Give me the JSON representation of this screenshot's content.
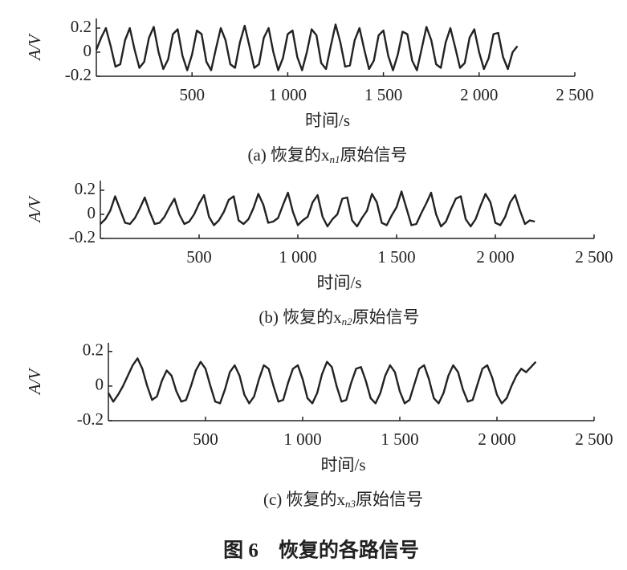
{
  "chart_data": [
    {
      "type": "line",
      "xlabel": "时间/s",
      "ylabel": "A/V",
      "caption": {
        "prefix": "(a) 恢复的",
        "var": "x",
        "sub": "n1",
        "suffix": "原始信号"
      },
      "xlim": [
        0,
        2500
      ],
      "ylim": [
        -0.2,
        0.28
      ],
      "xticks": [
        500,
        {
          "value": 1000,
          "label": "1 000"
        },
        {
          "value": 1500,
          "label": "1 500"
        },
        {
          "value": 2000,
          "label": "2 000"
        },
        {
          "value": 2500,
          "label": "2 500"
        }
      ],
      "yticks": [
        -0.2,
        0,
        0.2
      ],
      "x": [
        0,
        25,
        50,
        75,
        100,
        125,
        150,
        175,
        200,
        225,
        250,
        275,
        300,
        325,
        350,
        375,
        400,
        425,
        450,
        475,
        500,
        525,
        550,
        575,
        600,
        625,
        650,
        675,
        700,
        725,
        750,
        775,
        800,
        825,
        850,
        875,
        900,
        925,
        950,
        975,
        1000,
        1025,
        1050,
        1075,
        1100,
        1125,
        1150,
        1175,
        1200,
        1225,
        1250,
        1275,
        1300,
        1325,
        1350,
        1375,
        1400,
        1425,
        1450,
        1475,
        1500,
        1525,
        1550,
        1575,
        1600,
        1625,
        1650,
        1675,
        1700,
        1725,
        1750,
        1775,
        1800,
        1825,
        1850,
        1875,
        1900,
        1925,
        1950,
        1975,
        2000,
        2025,
        2050,
        2075,
        2100,
        2125,
        2150,
        2175,
        2200
      ],
      "series": [
        {
          "color": "#222222",
          "values": [
            0.02,
            0.12,
            0.2,
            0.05,
            -0.12,
            -0.1,
            0.1,
            0.2,
            0.02,
            -0.13,
            -0.08,
            0.12,
            0.21,
            0.0,
            -0.14,
            -0.06,
            0.15,
            0.19,
            -0.03,
            -0.15,
            -0.02,
            0.18,
            0.15,
            -0.08,
            -0.15,
            0.03,
            0.2,
            0.1,
            -0.1,
            -0.13,
            0.08,
            0.22,
            0.05,
            -0.13,
            -0.1,
            0.12,
            0.2,
            0.0,
            -0.15,
            -0.05,
            0.15,
            0.18,
            -0.04,
            -0.15,
            0.0,
            0.19,
            0.14,
            -0.09,
            -0.14,
            0.05,
            0.23,
            0.08,
            -0.12,
            -0.11,
            0.1,
            0.2,
            0.02,
            -0.14,
            -0.07,
            0.14,
            0.18,
            -0.03,
            -0.15,
            -0.02,
            0.17,
            0.15,
            -0.07,
            -0.15,
            0.03,
            0.21,
            0.1,
            -0.1,
            -0.13,
            0.08,
            0.2,
            0.04,
            -0.13,
            -0.09,
            0.12,
            0.19,
            0.0,
            -0.14,
            -0.05,
            0.15,
            0.16,
            -0.04,
            -0.14,
            0.0,
            0.05
          ]
        }
      ]
    },
    {
      "type": "line",
      "xlabel": "时间/s",
      "ylabel": "A/V",
      "caption": {
        "prefix": "(b) 恢复的",
        "var": "x",
        "sub": "n2",
        "suffix": "原始信号"
      },
      "xlim": [
        0,
        2500
      ],
      "ylim": [
        -0.2,
        0.28
      ],
      "xticks": [
        500,
        {
          "value": 1000,
          "label": "1 000"
        },
        {
          "value": 1500,
          "label": "1 500"
        },
        {
          "value": 2000,
          "label": "2 000"
        },
        {
          "value": 2500,
          "label": "2 500"
        }
      ],
      "yticks": [
        -0.2,
        0,
        0.2
      ],
      "x": [
        0,
        25,
        50,
        75,
        100,
        125,
        150,
        175,
        200,
        225,
        250,
        275,
        300,
        325,
        350,
        375,
        400,
        425,
        450,
        475,
        500,
        525,
        550,
        575,
        600,
        625,
        650,
        675,
        700,
        725,
        750,
        775,
        800,
        825,
        850,
        875,
        900,
        925,
        950,
        975,
        1000,
        1025,
        1050,
        1075,
        1100,
        1125,
        1150,
        1175,
        1200,
        1225,
        1250,
        1275,
        1300,
        1325,
        1350,
        1375,
        1400,
        1425,
        1450,
        1475,
        1500,
        1525,
        1550,
        1575,
        1600,
        1625,
        1650,
        1675,
        1700,
        1725,
        1750,
        1775,
        1800,
        1825,
        1850,
        1875,
        1900,
        1925,
        1950,
        1975,
        2000,
        2025,
        2050,
        2075,
        2100,
        2125,
        2150,
        2175,
        2200
      ],
      "series": [
        {
          "color": "#222222",
          "values": [
            -0.08,
            -0.04,
            0.03,
            0.15,
            0.04,
            -0.07,
            -0.08,
            -0.03,
            0.05,
            0.14,
            0.02,
            -0.08,
            -0.07,
            -0.02,
            0.06,
            0.13,
            0.0,
            -0.08,
            -0.06,
            0.0,
            0.09,
            0.16,
            -0.02,
            -0.09,
            -0.05,
            0.02,
            0.12,
            0.15,
            -0.05,
            -0.08,
            -0.04,
            0.05,
            0.17,
            0.08,
            -0.07,
            -0.06,
            -0.03,
            0.08,
            0.18,
            0.02,
            -0.09,
            -0.05,
            -0.02,
            0.1,
            0.16,
            -0.02,
            -0.1,
            -0.04,
            0.0,
            0.13,
            0.14,
            -0.05,
            -0.1,
            -0.03,
            0.03,
            0.17,
            0.1,
            -0.07,
            -0.09,
            -0.01,
            0.06,
            0.19,
            0.05,
            -0.09,
            -0.08,
            0.01,
            0.09,
            0.18,
            0.0,
            -0.1,
            -0.06,
            0.04,
            0.13,
            0.15,
            -0.04,
            -0.1,
            -0.04,
            0.07,
            0.17,
            0.1,
            -0.07,
            -0.09,
            -0.02,
            0.1,
            0.16,
            0.03,
            -0.08,
            -0.05,
            -0.06
          ]
        }
      ]
    },
    {
      "type": "line",
      "xlabel": "时间/s",
      "ylabel": "A/V",
      "caption": {
        "prefix": "(c) 恢复的",
        "var": "x",
        "sub": "n3",
        "suffix": "原始信号"
      },
      "xlim": [
        0,
        2500
      ],
      "ylim": [
        -0.2,
        0.25
      ],
      "xticks": [
        500,
        {
          "value": 1000,
          "label": "1 000"
        },
        {
          "value": 1500,
          "label": "1 500"
        },
        {
          "value": 2000,
          "label": "2 000"
        },
        {
          "value": 2500,
          "label": "2 500"
        }
      ],
      "yticks": [
        -0.2,
        0,
        0.2
      ],
      "x": [
        0,
        25,
        50,
        75,
        100,
        125,
        150,
        175,
        200,
        225,
        250,
        275,
        300,
        325,
        350,
        375,
        400,
        425,
        450,
        475,
        500,
        525,
        550,
        575,
        600,
        625,
        650,
        675,
        700,
        725,
        750,
        775,
        800,
        825,
        850,
        875,
        900,
        925,
        950,
        975,
        1000,
        1025,
        1050,
        1075,
        1100,
        1125,
        1150,
        1175,
        1200,
        1225,
        1250,
        1275,
        1300,
        1325,
        1350,
        1375,
        1400,
        1425,
        1450,
        1475,
        1500,
        1525,
        1550,
        1575,
        1600,
        1625,
        1650,
        1675,
        1700,
        1725,
        1750,
        1775,
        1800,
        1825,
        1850,
        1875,
        1900,
        1925,
        1950,
        1975,
        2000,
        2025,
        2050,
        2075,
        2100,
        2125,
        2150,
        2175,
        2200
      ],
      "series": [
        {
          "color": "#222222",
          "values": [
            -0.04,
            -0.09,
            -0.05,
            0.0,
            0.06,
            0.12,
            0.16,
            0.1,
            0.0,
            -0.08,
            -0.06,
            0.03,
            0.09,
            0.06,
            -0.03,
            -0.09,
            -0.08,
            0.0,
            0.09,
            0.14,
            0.1,
            0.0,
            -0.09,
            -0.1,
            -0.02,
            0.08,
            0.12,
            0.06,
            -0.05,
            -0.1,
            -0.06,
            0.04,
            0.12,
            0.1,
            0.0,
            -0.09,
            -0.08,
            0.02,
            0.1,
            0.12,
            0.04,
            -0.07,
            -0.1,
            -0.04,
            0.07,
            0.14,
            0.11,
            0.0,
            -0.09,
            -0.08,
            0.02,
            0.1,
            0.11,
            0.03,
            -0.07,
            -0.1,
            -0.04,
            0.06,
            0.12,
            0.08,
            -0.03,
            -0.1,
            -0.08,
            0.01,
            0.1,
            0.12,
            0.04,
            -0.07,
            -0.1,
            -0.04,
            0.06,
            0.12,
            0.08,
            -0.02,
            -0.09,
            -0.08,
            0.01,
            0.1,
            0.12,
            0.05,
            -0.05,
            -0.1,
            -0.07,
            0.0,
            0.06,
            0.1,
            0.08,
            0.11,
            0.14
          ]
        }
      ]
    }
  ],
  "figure": {
    "title": "图 6　恢复的各路信号"
  }
}
